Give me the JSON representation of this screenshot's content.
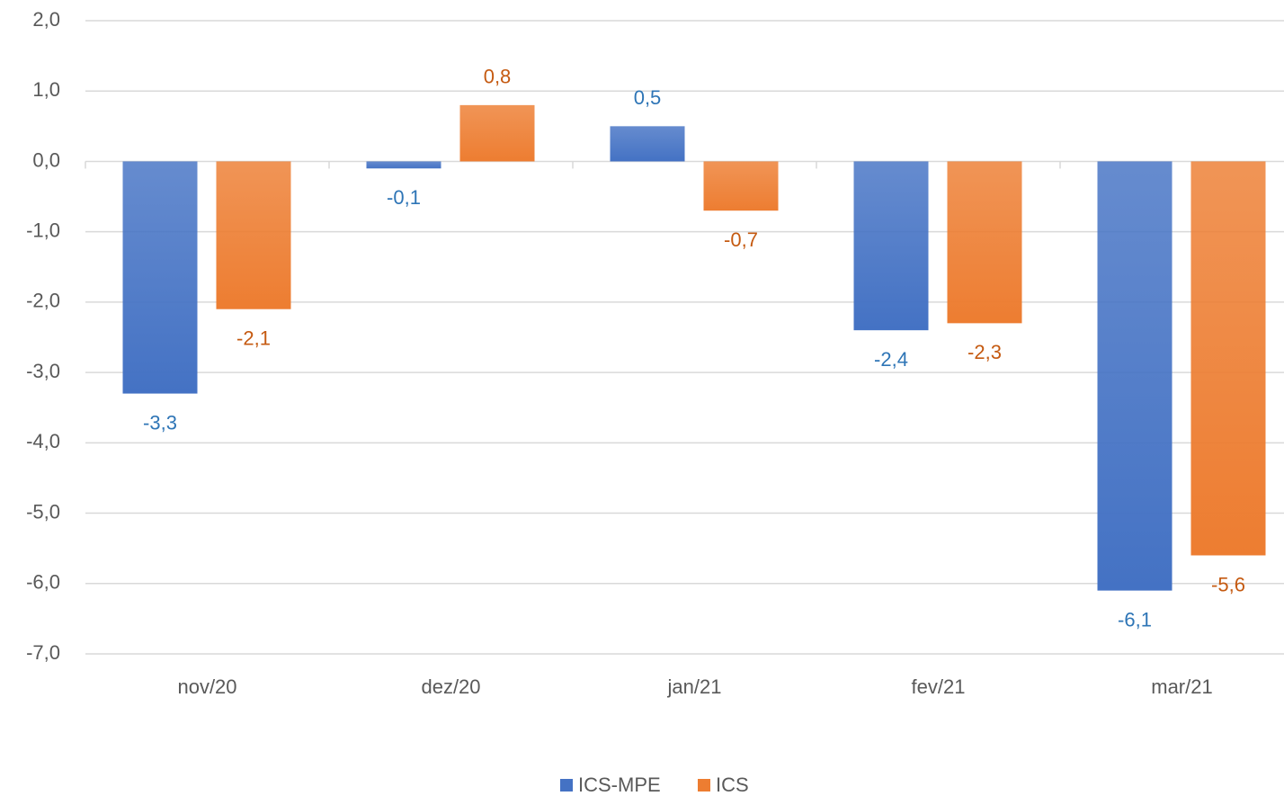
{
  "chart_data": {
    "type": "bar",
    "categories": [
      "nov/20",
      "dez/20",
      "jan/21",
      "fev/21",
      "mar/21"
    ],
    "series": [
      {
        "name": "ICS-MPE",
        "color": "#4472c4",
        "values": [
          -3.3,
          -0.1,
          0.5,
          -2.4,
          -6.1
        ],
        "value_labels": [
          "-3,3",
          "-0,1",
          "0,5",
          "-2,4",
          "-6,1"
        ]
      },
      {
        "name": "ICS",
        "color": "#ed7d31",
        "values": [
          -2.1,
          0.8,
          -0.7,
          -2.3,
          -5.6
        ],
        "value_labels": [
          "-2,1",
          "0,8",
          "-0,7",
          "-2,3",
          "-5,6"
        ]
      }
    ],
    "ylim": [
      -7,
      2
    ],
    "yticks": [
      {
        "value": -7,
        "label": "-7,0"
      },
      {
        "value": -6,
        "label": "-6,0"
      },
      {
        "value": -5,
        "label": "-5,0"
      },
      {
        "value": -4,
        "label": "-4,0"
      },
      {
        "value": -3,
        "label": "-3,0"
      },
      {
        "value": -2,
        "label": "-2,0"
      },
      {
        "value": -1,
        "label": "-1,0"
      },
      {
        "value": 0,
        "label": "0,0"
      },
      {
        "value": 1,
        "label": "1,0"
      },
      {
        "value": 2,
        "label": "2,0"
      }
    ],
    "grid": true,
    "legend": "bottom"
  }
}
